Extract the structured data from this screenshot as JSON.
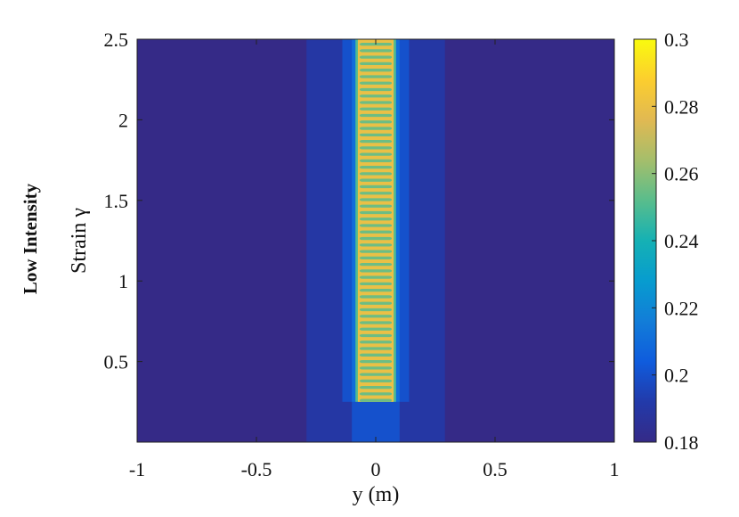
{
  "side_label": "Low Intensity",
  "chart_data": {
    "type": "heatmap",
    "xlabel": "y (m)",
    "ylabel": "Strain γ",
    "xlim": [
      -1,
      1
    ],
    "ylim": [
      0,
      2.5
    ],
    "x_ticks": [
      "-1",
      "-0.5",
      "0",
      "0.5",
      "1"
    ],
    "y_ticks": [
      "0.5",
      "1",
      "1.5",
      "2",
      "2.5"
    ],
    "colorbar": {
      "min": 0.18,
      "max": 0.3,
      "ticks": [
        "0.18",
        "0.2",
        "0.22",
        "0.24",
        "0.26",
        "0.28",
        "0.3"
      ],
      "colormap": "parula"
    },
    "background_value": 0.18,
    "regions": [
      {
        "name": "outer-band",
        "x": [
          -0.29,
          0.29
        ],
        "y": [
          0,
          2.5
        ],
        "value": 0.19
      },
      {
        "name": "lower-core",
        "x": [
          -0.1,
          0.1
        ],
        "y": [
          0,
          0.25
        ],
        "value": 0.2
      },
      {
        "name": "inner-band",
        "x": [
          -0.14,
          0.14
        ],
        "y": [
          0.25,
          2.5
        ],
        "value": 0.2
      },
      {
        "name": "mid-band",
        "x": [
          -0.1,
          0.1
        ],
        "y": [
          0.25,
          2.5
        ],
        "value": 0.21
      },
      {
        "name": "shear-band-edge",
        "x": [
          -0.085,
          0.085
        ],
        "y": [
          0.25,
          2.5
        ],
        "value": 0.25
      },
      {
        "name": "shear-band-core",
        "x": [
          -0.075,
          0.075
        ],
        "y": [
          0.25,
          2.5
        ],
        "value": 0.28
      }
    ],
    "stripes": {
      "x": [
        -0.075,
        0.075
      ],
      "y": [
        0.25,
        2.5
      ],
      "count": 56,
      "high_value": 0.285,
      "low_value": 0.255
    }
  }
}
